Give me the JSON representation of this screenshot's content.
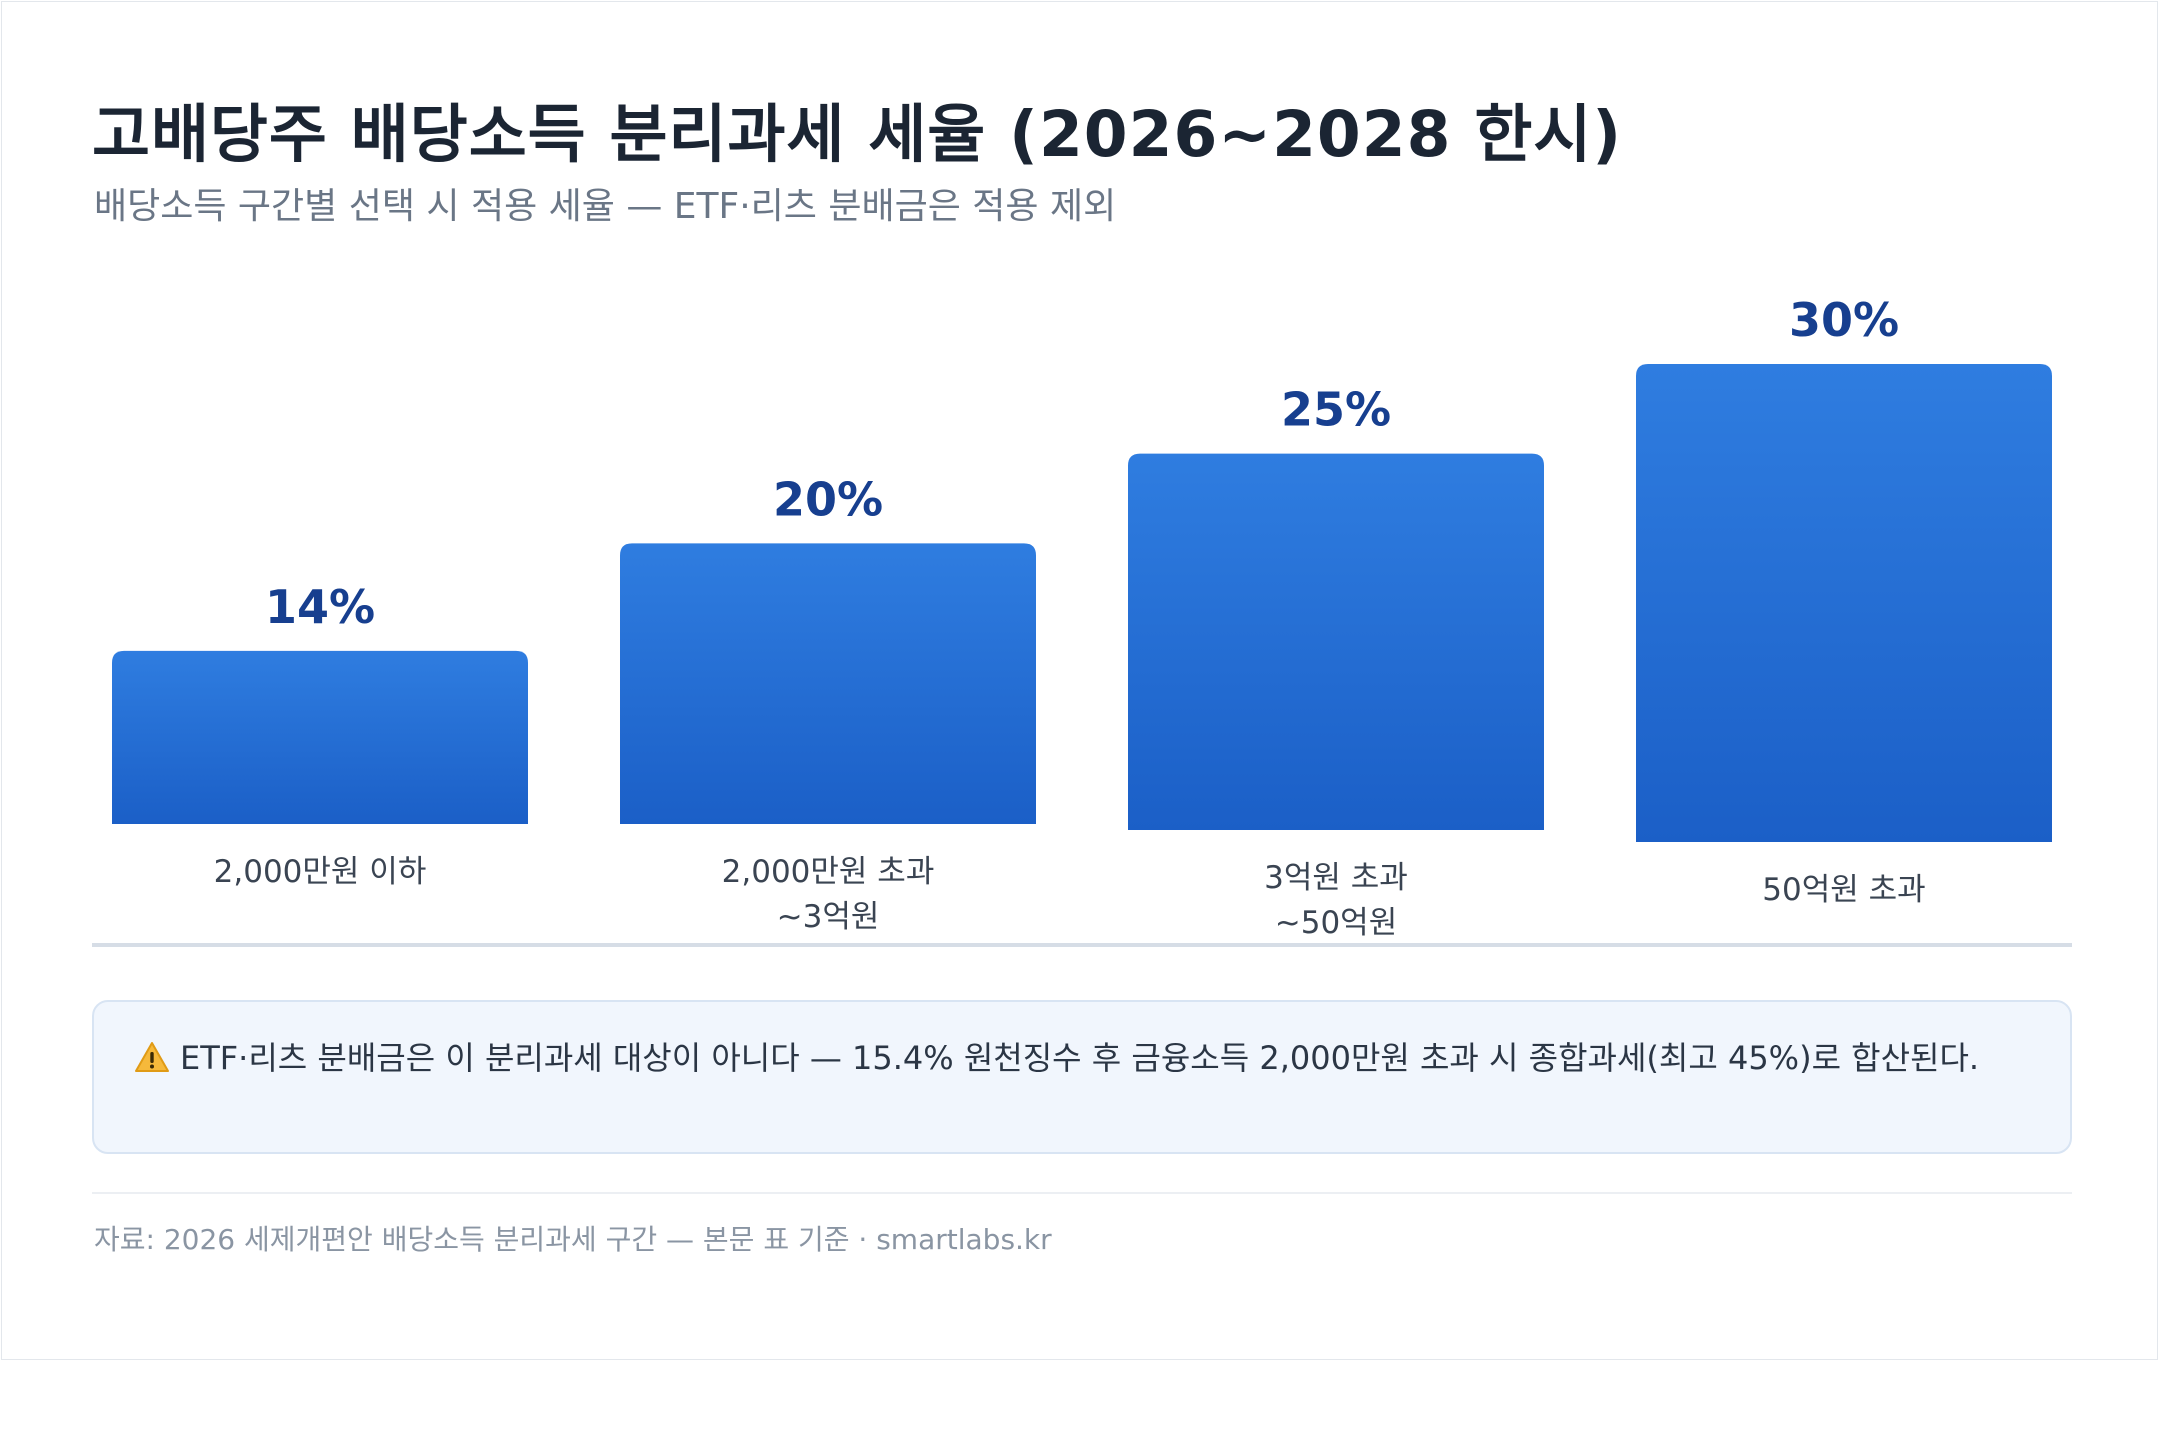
{
  "title": "고배당주 배당소득 분리과세 세율 (2026~2028 한시)",
  "subtitle": "배당소득 구간별 선택 시 적용 세율 — ETF·리츠 분배금은 적용 제외",
  "chart_data": {
    "type": "bar",
    "categories": [
      [
        "2,000만원 이하"
      ],
      [
        "2,000만원 초과",
        "~3억원"
      ],
      [
        "3억원 초과",
        "~50억원"
      ],
      [
        "50억원 초과"
      ]
    ],
    "values": [
      14,
      20,
      25,
      30
    ],
    "value_labels": [
      "14%",
      "20%",
      "25%",
      "30%"
    ],
    "unit": "%",
    "ylim": [
      0,
      35
    ],
    "grid": false,
    "colors": {
      "bar_top": "#2f7de0",
      "bar_bottom": "#1b5fc7",
      "value_label": "#173f8f",
      "category_label": "#3a4452",
      "baseline": "#d6dde6"
    }
  },
  "callout": {
    "icon": "warning-icon",
    "text": "ETF·리츠 분배금은 이 분리과세 대상이 아니다 — 15.4% 원천징수 후 금융소득 2,000만원 초과 시 종합과세(최고 45%)로 합산된다."
  },
  "source": "자료: 2026 세제개편안 배당소득 분리과세 구간 — 본문 표 기준 · smartlabs.kr"
}
